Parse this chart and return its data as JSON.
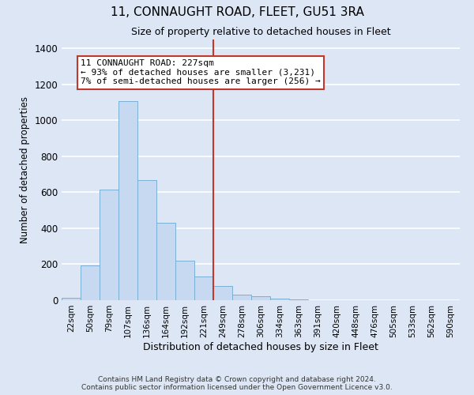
{
  "title": "11, CONNAUGHT ROAD, FLEET, GU51 3RA",
  "subtitle": "Size of property relative to detached houses in Fleet",
  "bar_labels": [
    "22sqm",
    "50sqm",
    "79sqm",
    "107sqm",
    "136sqm",
    "164sqm",
    "192sqm",
    "221sqm",
    "249sqm",
    "278sqm",
    "306sqm",
    "334sqm",
    "363sqm",
    "391sqm",
    "420sqm",
    "448sqm",
    "476sqm",
    "505sqm",
    "533sqm",
    "562sqm",
    "590sqm"
  ],
  "bar_values": [
    12,
    193,
    614,
    1107,
    670,
    430,
    221,
    130,
    78,
    30,
    22,
    10,
    5,
    0,
    0,
    0,
    0,
    0,
    0,
    0,
    0
  ],
  "bar_color": "#c6d9f0",
  "bar_edge_color": "#7bafd4",
  "fig_bg_color": "#dce6f5",
  "axes_bg_color": "#dce6f5",
  "grid_color": "#ffffff",
  "vline_color": "#c0392b",
  "vline_x_index": 7,
  "ylabel": "Number of detached properties",
  "xlabel": "Distribution of detached houses by size in Fleet",
  "ylim": [
    0,
    1450
  ],
  "yticks": [
    0,
    200,
    400,
    600,
    800,
    1000,
    1200,
    1400
  ],
  "annotation_title": "11 CONNAUGHT ROAD: 227sqm",
  "annotation_line1": "← 93% of detached houses are smaller (3,231)",
  "annotation_line2": "7% of semi-detached houses are larger (256) →",
  "annotation_box_edge": "#c0392b",
  "footnote1": "Contains HM Land Registry data © Crown copyright and database right 2024.",
  "footnote2": "Contains public sector information licensed under the Open Government Licence v3.0."
}
